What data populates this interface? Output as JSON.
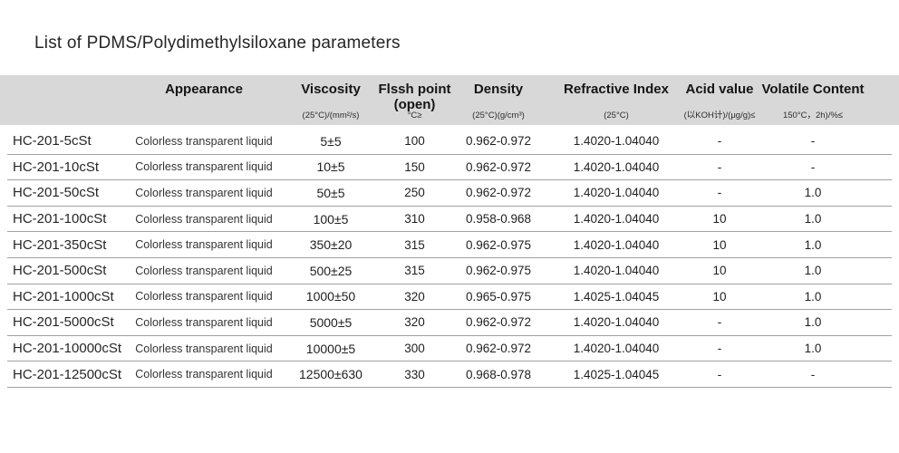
{
  "title": "List of PDMS/Polydimethylsiloxane parameters",
  "colors": {
    "header_bg": "#d8d8d8",
    "divider": "#a0a0a0",
    "title_text": "#262626",
    "body_text": "#222222"
  },
  "table": {
    "columns": [
      {
        "key": "model",
        "label": "",
        "label2": "",
        "sub": ""
      },
      {
        "key": "appearance",
        "label": "Appearance",
        "label2": "",
        "sub": ""
      },
      {
        "key": "viscosity",
        "label": "Viscosity",
        "label2": "",
        "sub": "(25°C)/(mm²/s)"
      },
      {
        "key": "flash_point",
        "label": "Flssh point",
        "label2": "(open)",
        "sub": "°C≥"
      },
      {
        "key": "density",
        "label": "Density",
        "label2": "",
        "sub": "(25°C)(g/cm³)"
      },
      {
        "key": "refractive_index",
        "label": "Refractive Index",
        "label2": "",
        "sub": "(25°C)"
      },
      {
        "key": "acid_value",
        "label": "Acid value",
        "label2": "",
        "sub": "(以KOH计)/(μg/g)≤"
      },
      {
        "key": "volatile_content",
        "label": "Volatile Content",
        "label2": "",
        "sub": "150°C，2h)/%≤"
      }
    ],
    "rows": [
      {
        "model": "HC-201-5cSt",
        "appearance": "Colorless transparent liquid",
        "viscosity": "5±5",
        "flash_point": "100",
        "density": "0.962-0.972",
        "refractive_index": "1.4020-1.04040",
        "acid_value": "-",
        "volatile_content": "-"
      },
      {
        "model": "HC-201-10cSt",
        "appearance": "Colorless transparent liquid",
        "viscosity": "10±5",
        "flash_point": "150",
        "density": "0.962-0.972",
        "refractive_index": "1.4020-1.04040",
        "acid_value": "-",
        "volatile_content": "-"
      },
      {
        "model": "HC-201-50cSt",
        "appearance": "Colorless transparent liquid",
        "viscosity": "50±5",
        "flash_point": "250",
        "density": "0.962-0.972",
        "refractive_index": "1.4020-1.04040",
        "acid_value": "-",
        "volatile_content": "1.0"
      },
      {
        "model": "HC-201-100cSt",
        "appearance": "Colorless transparent liquid",
        "viscosity": "100±5",
        "flash_point": "310",
        "density": "0.958-0.968",
        "refractive_index": "1.4020-1.04040",
        "acid_value": "10",
        "volatile_content": "1.0"
      },
      {
        "model": "HC-201-350cSt",
        "appearance": "Colorless transparent liquid",
        "viscosity": "350±20",
        "flash_point": "315",
        "density": "0.962-0.975",
        "refractive_index": "1.4020-1.04040",
        "acid_value": "10",
        "volatile_content": "1.0"
      },
      {
        "model": "HC-201-500cSt",
        "appearance": "Colorless transparent liquid",
        "viscosity": "500±25",
        "flash_point": "315",
        "density": "0.962-0.975",
        "refractive_index": "1.4020-1.04040",
        "acid_value": "10",
        "volatile_content": "1.0"
      },
      {
        "model": "HC-201-1000cSt",
        "appearance": "Colorless transparent liquid",
        "viscosity": "1000±50",
        "flash_point": "320",
        "density": "0.965-0.975",
        "refractive_index": "1.4025-1.04045",
        "acid_value": "10",
        "volatile_content": "1.0"
      },
      {
        "model": "HC-201-5000cSt",
        "appearance": "Colorless transparent liquid",
        "viscosity": "5000±5",
        "flash_point": "320",
        "density": "0.962-0.972",
        "refractive_index": "1.4020-1.04040",
        "acid_value": "-",
        "volatile_content": "1.0"
      },
      {
        "model": "HC-201-10000cSt",
        "appearance": "Colorless transparent liquid",
        "viscosity": "10000±5",
        "flash_point": "300",
        "density": "0.962-0.972",
        "refractive_index": "1.4020-1.04040",
        "acid_value": "-",
        "volatile_content": "1.0"
      },
      {
        "model": "HC-201-12500cSt",
        "appearance": "Colorless transparent liquid",
        "viscosity": "12500±630",
        "flash_point": "330",
        "density": "0.968-0.978",
        "refractive_index": "1.4025-1.04045",
        "acid_value": "-",
        "volatile_content": "-"
      }
    ]
  }
}
